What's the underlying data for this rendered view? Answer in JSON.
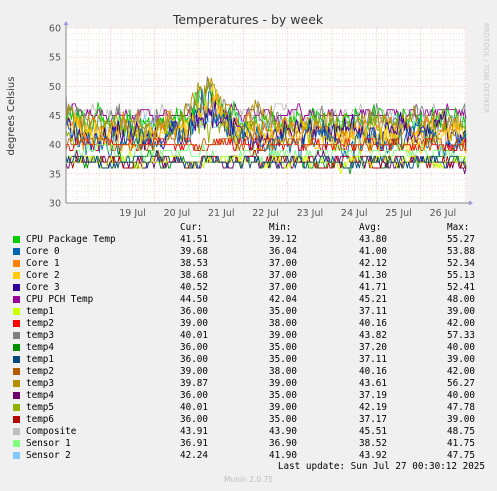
{
  "chart_data": {
    "type": "line",
    "title": "Temperatures - by week",
    "ylabel": "degrees Celsius",
    "watermark": "RRDTOOL / TOBI OETIKER",
    "ylim": [
      30,
      60
    ],
    "yticks": [
      30,
      35,
      40,
      45,
      50,
      55,
      60
    ],
    "xlim": [
      "2025-07-18T00:00",
      "2025-07-27T00:30"
    ],
    "xticks": [
      "19 Jul",
      "20 Jul",
      "21 Jul",
      "22 Jul",
      "23 Jul",
      "24 Jul",
      "25 Jul",
      "26 Jul"
    ],
    "grid": true,
    "legend_columns": [
      "Cur:",
      "Min:",
      "Avg:",
      "Max:"
    ],
    "series": [
      {
        "name": "CPU Package Temp",
        "color": "#00cc00",
        "cur": "41.51",
        "min": "39.12",
        "avg": "43.80",
        "max": "55.27"
      },
      {
        "name": "Core 0",
        "color": "#0066b3",
        "cur": "39.68",
        "min": "36.04",
        "avg": "41.00",
        "max": "53.88"
      },
      {
        "name": "Core 1",
        "color": "#ff8000",
        "cur": "38.53",
        "min": "37.00",
        "avg": "42.12",
        "max": "52.34"
      },
      {
        "name": "Core 2",
        "color": "#ffcc00",
        "cur": "38.68",
        "min": "37.00",
        "avg": "41.30",
        "max": "55.13"
      },
      {
        "name": "Core 3",
        "color": "#330099",
        "cur": "40.52",
        "min": "37.00",
        "avg": "41.71",
        "max": "52.41"
      },
      {
        "name": "CPU PCH Temp",
        "color": "#990099",
        "cur": "44.50",
        "min": "42.04",
        "avg": "45.21",
        "max": "48.00"
      },
      {
        "name": "temp1",
        "color": "#ccff00",
        "cur": "36.00",
        "min": "35.00",
        "avg": "37.11",
        "max": "39.00"
      },
      {
        "name": "temp2",
        "color": "#ff0000",
        "cur": "39.00",
        "min": "38.00",
        "avg": "40.16",
        "max": "42.00"
      },
      {
        "name": "temp3",
        "color": "#808080",
        "cur": "40.01",
        "min": "39.00",
        "avg": "43.82",
        "max": "57.33"
      },
      {
        "name": "temp4",
        "color": "#008f00",
        "cur": "36.00",
        "min": "35.00",
        "avg": "37.20",
        "max": "40.00"
      },
      {
        "name": "temp1",
        "color": "#00487d",
        "cur": "36.00",
        "min": "35.00",
        "avg": "37.11",
        "max": "39.00"
      },
      {
        "name": "temp2",
        "color": "#b35a00",
        "cur": "39.00",
        "min": "38.00",
        "avg": "40.16",
        "max": "42.00"
      },
      {
        "name": "temp3",
        "color": "#b38f00",
        "cur": "39.87",
        "min": "39.00",
        "avg": "43.61",
        "max": "56.27"
      },
      {
        "name": "temp4",
        "color": "#6b006b",
        "cur": "36.00",
        "min": "35.00",
        "avg": "37.19",
        "max": "40.00"
      },
      {
        "name": "temp5",
        "color": "#8fb300",
        "cur": "40.01",
        "min": "39.00",
        "avg": "42.19",
        "max": "47.78"
      },
      {
        "name": "temp6",
        "color": "#b30000",
        "cur": "36.00",
        "min": "35.00",
        "avg": "37.17",
        "max": "39.00"
      },
      {
        "name": "Composite",
        "color": "#bebebe",
        "cur": "43.91",
        "min": "43.90",
        "avg": "45.51",
        "max": "48.75"
      },
      {
        "name": "Sensor 1",
        "color": "#80ff80",
        "cur": "36.91",
        "min": "36.90",
        "avg": "38.52",
        "max": "41.75"
      },
      {
        "name": "Sensor 2",
        "color": "#80c9ff",
        "cur": "42.24",
        "min": "41.90",
        "avg": "43.92",
        "max": "47.75"
      }
    ]
  },
  "footer": {
    "last_update": "Last update: Sun Jul 27 00:30:12 2025",
    "version": "Munin 2.0.75"
  }
}
